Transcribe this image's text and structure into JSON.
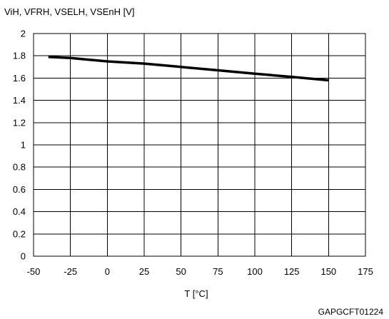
{
  "chart_data": {
    "type": "line",
    "ylabel": "ViH, VFRH, VSELH, VSEnH [V]",
    "xlabel": "T [°C]",
    "figure_code": "GAPGCFT01224",
    "xlim": [
      -50,
      175
    ],
    "ylim": [
      0,
      2
    ],
    "x_ticks": [
      -50,
      -25,
      0,
      25,
      50,
      75,
      100,
      125,
      150,
      175
    ],
    "y_ticks": [
      0,
      0.2,
      0.4,
      0.6,
      0.8,
      1,
      1.2,
      1.4,
      1.6,
      1.8,
      2
    ],
    "x_tick_labels": [
      "-50",
      "-25",
      "0",
      "25",
      "50",
      "75",
      "100",
      "125",
      "150",
      "175"
    ],
    "y_tick_labels": [
      "0",
      "0.2",
      "0.4",
      "0.6",
      "0.8",
      "1",
      "1.2",
      "1.4",
      "1.6",
      "1.8",
      "2"
    ],
    "grid": true,
    "series": [
      {
        "color": "#000000",
        "x": [
          -40,
          -25,
          0,
          25,
          50,
          75,
          100,
          125,
          150
        ],
        "y": [
          1.79,
          1.78,
          1.75,
          1.73,
          1.7,
          1.67,
          1.64,
          1.61,
          1.58
        ]
      }
    ]
  }
}
